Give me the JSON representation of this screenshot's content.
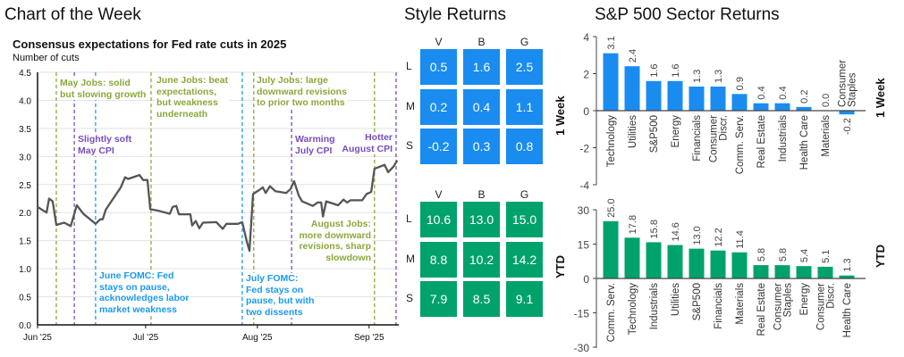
{
  "titles": {
    "chart_of_week": "Chart of the Week",
    "style_returns": "Style Returns",
    "sector_returns": "S&P 500 Sector Returns"
  },
  "colors": {
    "line": "#555555",
    "jobs": "#8aa83a",
    "cpi": "#7a4cc0",
    "fomc": "#1a9af0",
    "week": "#1a8cf0",
    "ytd": "#00a26b"
  },
  "chart_data": [
    {
      "type": "line",
      "title": "Consensus expectations for Fed rate cuts in 2025",
      "ylabel": "Number of cuts",
      "ylim": [
        0,
        4.5
      ],
      "yticks": [
        "0.0",
        "0.5",
        "1.0",
        "1.5",
        "2.0",
        "2.5",
        "3.0",
        "3.5",
        "4.0",
        "4.5"
      ],
      "xticks": [
        {
          "label": "Jun '25",
          "day": 0
        },
        {
          "label": "Jul '25",
          "day": 30
        },
        {
          "label": "Aug '25",
          "day": 61
        },
        {
          "label": "Sep '25",
          "day": 92
        }
      ],
      "x_unit": "days since Jun 1 2025",
      "series": [
        {
          "name": "Number of cuts",
          "points": [
            [
              0,
              2.1
            ],
            [
              2.5,
              2.0
            ],
            [
              3.2,
              2.25
            ],
            [
              4.2,
              2.2
            ],
            [
              5.2,
              1.78
            ],
            [
              7.4,
              1.82
            ],
            [
              9.2,
              1.76
            ],
            [
              10.9,
              2.13
            ],
            [
              12.7,
              1.98
            ],
            [
              16.1,
              1.8
            ],
            [
              17.4,
              1.88
            ],
            [
              18.1,
              1.88
            ],
            [
              18.9,
              2.05
            ],
            [
              23.1,
              2.45
            ],
            [
              24.3,
              2.63
            ],
            [
              25.1,
              2.6
            ],
            [
              28.3,
              2.67
            ],
            [
              29.3,
              2.58
            ],
            [
              30.5,
              2.58
            ],
            [
              31.3,
              2.06
            ],
            [
              33.7,
              2.03
            ],
            [
              36.7,
              1.98
            ],
            [
              37.5,
              2.1
            ],
            [
              38.5,
              2.12
            ],
            [
              39.2,
              1.97
            ],
            [
              42.4,
              1.97
            ],
            [
              42.9,
              1.77
            ],
            [
              43.9,
              1.85
            ],
            [
              44.9,
              1.72
            ],
            [
              45.9,
              1.82
            ],
            [
              49.6,
              1.83
            ],
            [
              51.4,
              1.71
            ],
            [
              52.4,
              1.8
            ],
            [
              55.6,
              1.8
            ],
            [
              56.8,
              1.83
            ],
            [
              58.1,
              1.48
            ],
            [
              58.8,
              1.32
            ],
            [
              59.8,
              2.33
            ],
            [
              61.5,
              2.4
            ],
            [
              62.5,
              2.45
            ],
            [
              63.3,
              2.35
            ],
            [
              64.5,
              2.47
            ],
            [
              66.0,
              2.38
            ],
            [
              69.0,
              2.35
            ],
            [
              70.2,
              2.42
            ],
            [
              71.2,
              2.56
            ],
            [
              72.5,
              2.3
            ],
            [
              73.4,
              2.2
            ],
            [
              76.4,
              2.12
            ],
            [
              77.7,
              2.18
            ],
            [
              78.7,
              2.18
            ],
            [
              79.2,
              1.93
            ],
            [
              80.1,
              2.2
            ],
            [
              83.4,
              2.13
            ],
            [
              84.9,
              2.23
            ],
            [
              85.9,
              2.18
            ],
            [
              86.8,
              2.22
            ],
            [
              90.1,
              2.22
            ],
            [
              91.3,
              2.33
            ],
            [
              92.6,
              2.37
            ],
            [
              93.5,
              2.78
            ],
            [
              96.3,
              2.85
            ],
            [
              97.3,
              2.72
            ],
            [
              98.8,
              2.82
            ],
            [
              99.8,
              2.93
            ]
          ]
        }
      ],
      "events": [
        {
          "type": "jobs",
          "day": 5.2,
          "text": "May Jobs: solid\nbut slowing growth"
        },
        {
          "type": "cpi",
          "day": 10.2,
          "text": "Slightly soft\nMay CPI"
        },
        {
          "type": "fomc",
          "day": 16.1,
          "text": "June FOMC: Fed\nstays on pause,\nacknowledges labor\nmarket weakness"
        },
        {
          "type": "jobs",
          "day": 31.5,
          "text": "June Jobs: beat\nexpectations,\nbut weakness\nunderneath"
        },
        {
          "type": "fomc",
          "day": 56.8,
          "text": "July FOMC:\nFed stays on\npause, but with\ntwo dissents"
        },
        {
          "type": "jobs",
          "day": 60.0,
          "text": "July Jobs: large\ndownward revisions\nto prior two months"
        },
        {
          "type": "cpi",
          "day": 70.5,
          "text": "Warming\nJuly CPI"
        },
        {
          "type": "jobs",
          "day": 93.5,
          "text": "August Jobs:\nmore downward\nrevisions, sharp\nslowdown"
        },
        {
          "type": "cpi",
          "day": 99.5,
          "text": "Hotter\nAugust CPI"
        }
      ]
    },
    {
      "type": "table",
      "title": "Style Returns",
      "columns": [
        "V",
        "B",
        "G"
      ],
      "rows": [
        "L",
        "M",
        "S"
      ],
      "panels": [
        {
          "label": "1 Week",
          "values": [
            [
              "0.5",
              "1.6",
              "2.5"
            ],
            [
              "0.2",
              "0.4",
              "1.1"
            ],
            [
              "-0.2",
              "0.3",
              "0.8"
            ]
          ]
        },
        {
          "label": "YTD",
          "values": [
            [
              "10.6",
              "13.0",
              "15.0"
            ],
            [
              "8.8",
              "10.2",
              "14.2"
            ],
            [
              "7.9",
              "8.5",
              "9.1"
            ]
          ]
        }
      ]
    },
    {
      "type": "bar",
      "title": "S&P 500 Sector Returns",
      "label": "1 Week",
      "ylim": [
        -4,
        4
      ],
      "yticks": [
        "-4",
        "-2",
        "0",
        "2",
        "4"
      ],
      "categories": [
        [
          "Technology"
        ],
        [
          "Utilities"
        ],
        [
          "S&P500"
        ],
        [
          "Energy"
        ],
        [
          "Financials"
        ],
        [
          "Consumer",
          "Discr."
        ],
        [
          "Comm. Serv."
        ],
        [
          "Real Estate"
        ],
        [
          "Industrials"
        ],
        [
          "Health Care"
        ],
        [
          "Materials"
        ],
        [
          "Consumer",
          "Staples"
        ]
      ],
      "values": [
        3.1,
        2.4,
        1.6,
        1.6,
        1.3,
        1.3,
        0.9,
        0.4,
        0.4,
        0.2,
        0.0,
        -0.2
      ],
      "labels": [
        "3.1",
        "2.4",
        "1.6",
        "1.6",
        "1.3",
        "1.3",
        "0.9",
        "0.4",
        "0.4",
        "0.2",
        "0.0",
        "-0.2"
      ]
    },
    {
      "type": "bar",
      "title": "S&P 500 Sector Returns",
      "label": "YTD",
      "ylim": [
        -30,
        30
      ],
      "yticks": [
        "-30",
        "-15",
        "0",
        "15",
        "30"
      ],
      "categories": [
        [
          "Comm. Serv."
        ],
        [
          "Technology"
        ],
        [
          "Industrials"
        ],
        [
          "Utilities"
        ],
        [
          "S&P500"
        ],
        [
          "Financials"
        ],
        [
          "Materials"
        ],
        [
          "Real Estate"
        ],
        [
          "Consumer",
          "Staples"
        ],
        [
          "Energy"
        ],
        [
          "Consumer",
          "Discr."
        ],
        [
          "Health Care"
        ]
      ],
      "values": [
        25.0,
        17.8,
        15.8,
        14.6,
        13.0,
        12.2,
        11.4,
        5.8,
        5.8,
        5.4,
        5.1,
        1.3
      ],
      "labels": [
        "25.0",
        "17.8",
        "15.8",
        "14.6",
        "13.0",
        "12.2",
        "11.4",
        "5.8",
        "5.8",
        "5.4",
        "5.1",
        "1.3"
      ]
    }
  ]
}
